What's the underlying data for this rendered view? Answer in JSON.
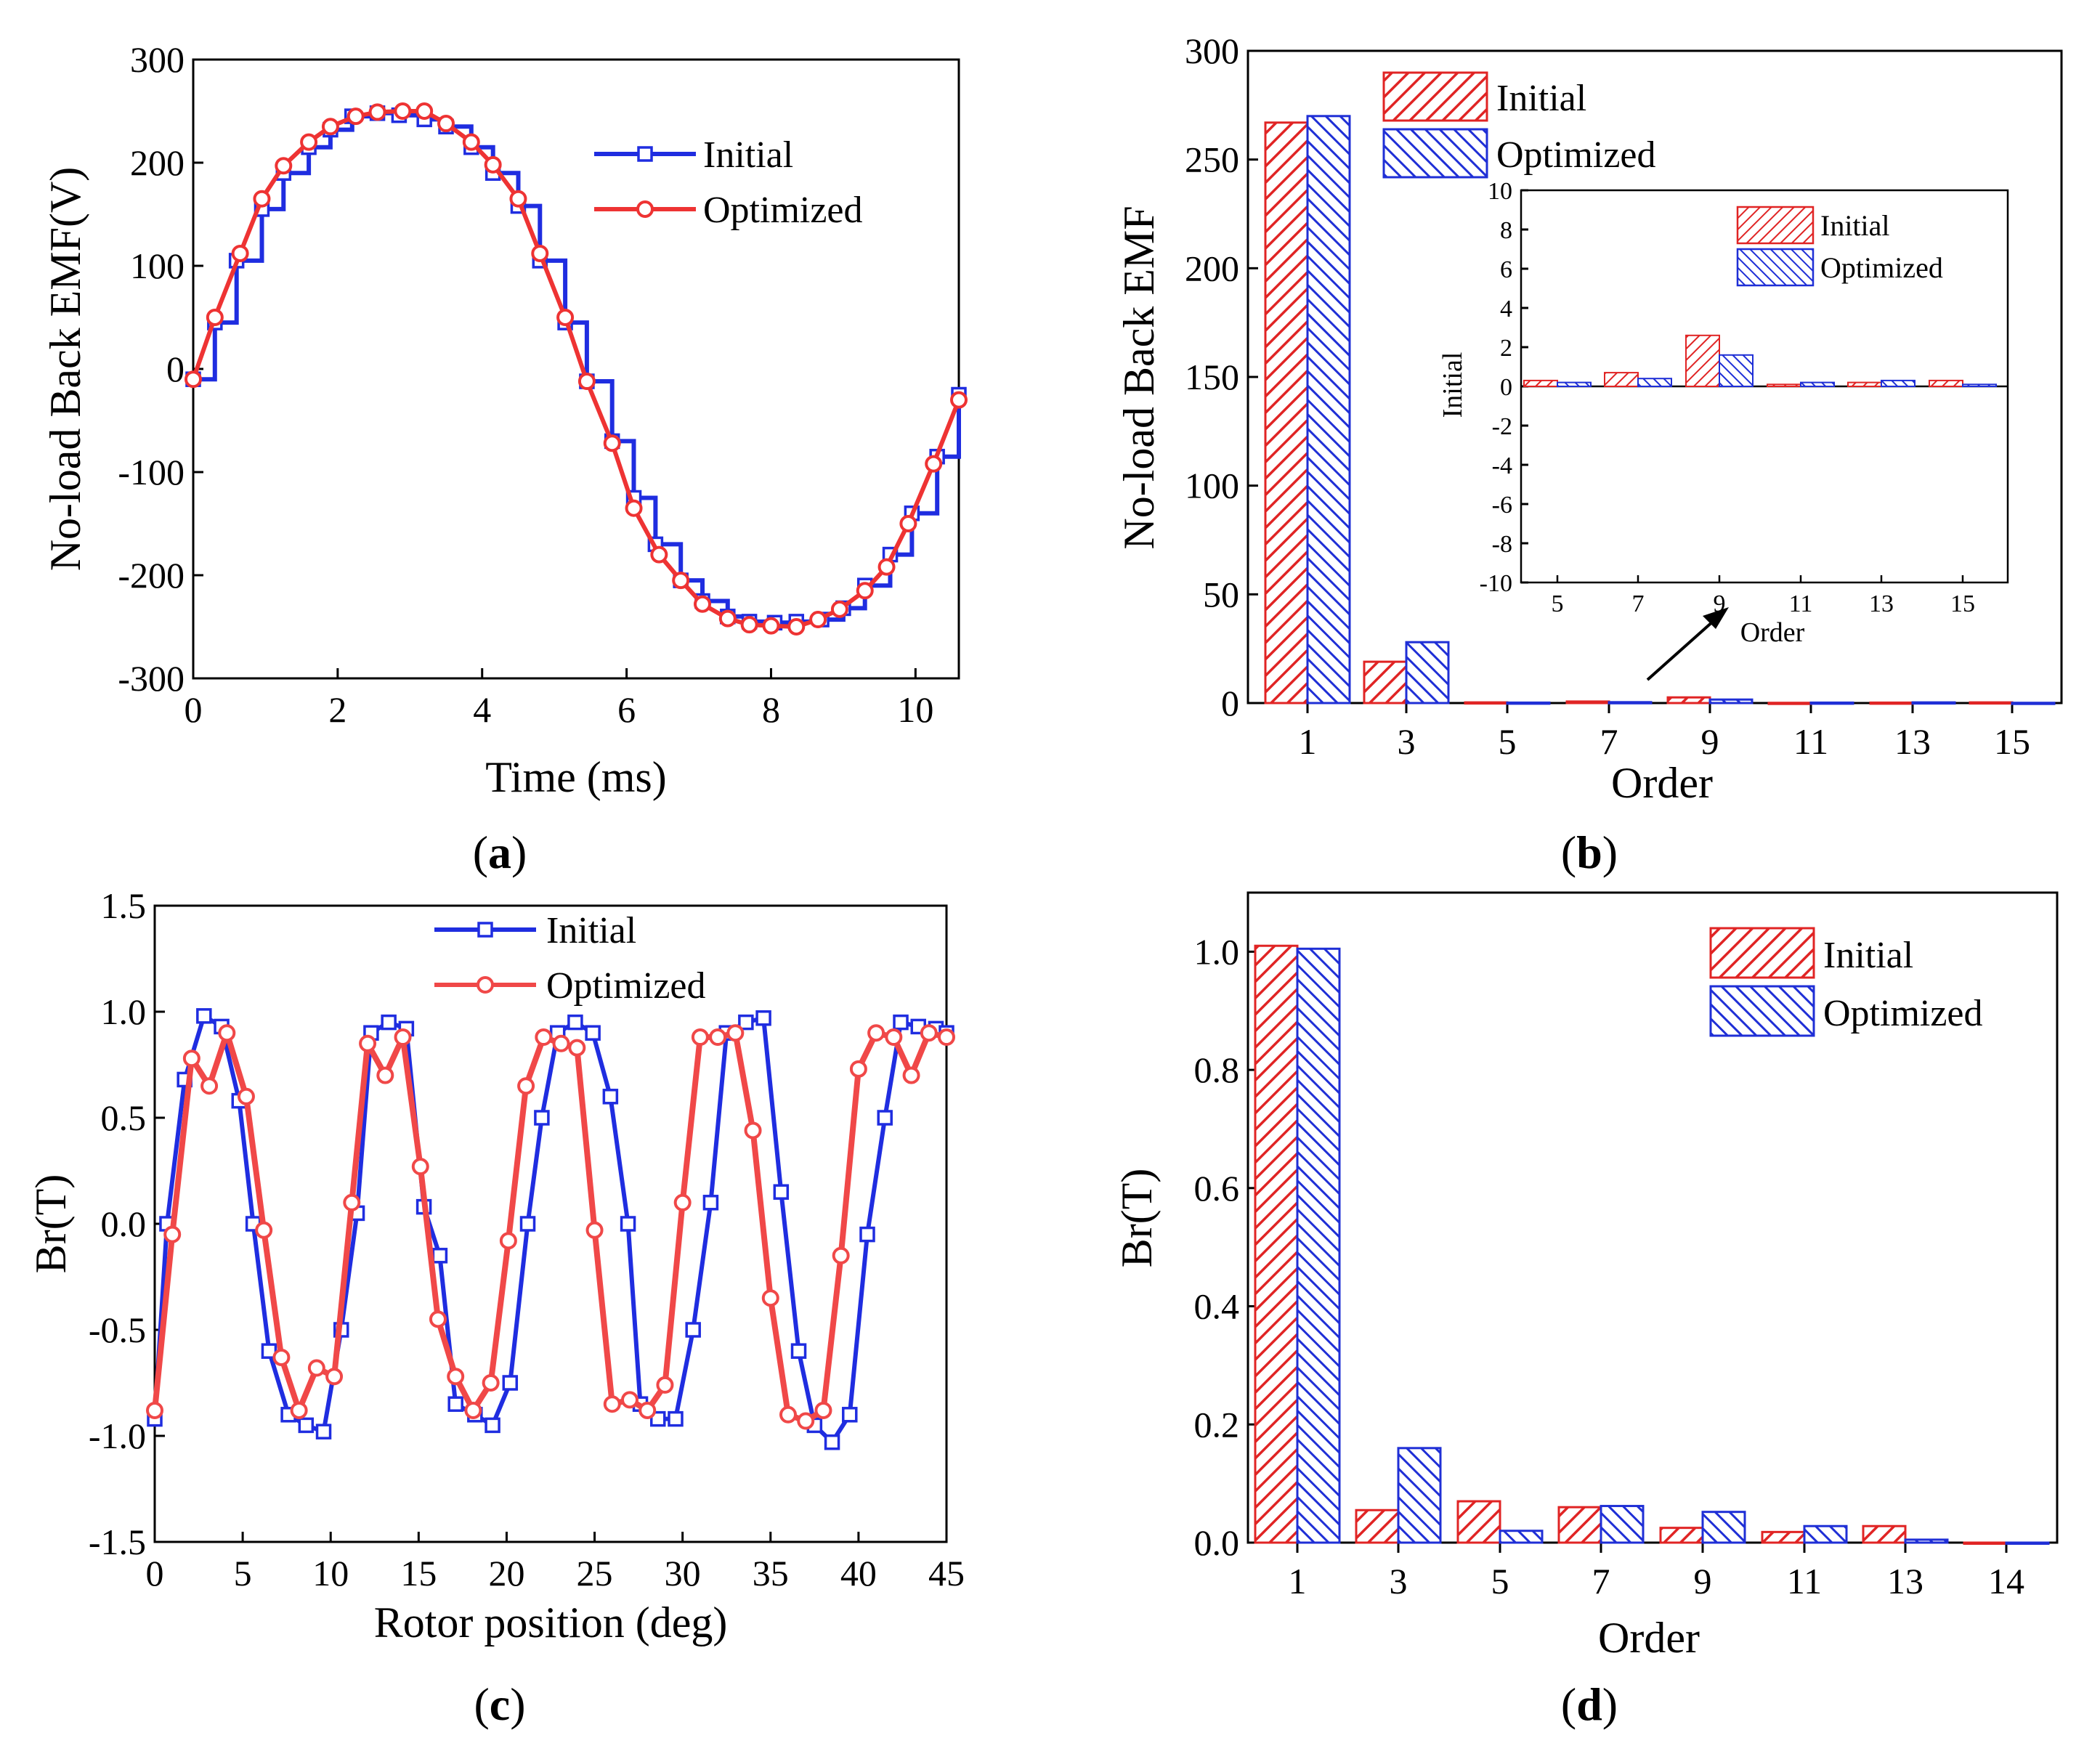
{
  "figure": {
    "colors": {
      "initial": "#1f2de0",
      "optimized": "#ee3333",
      "bar_initial": "#e02424",
      "bar_optimized": "#1f2fd6"
    },
    "panels": {
      "a": {
        "caption_label": "a"
      },
      "b": {
        "caption_label": "b"
      },
      "c": {
        "caption_label": "c"
      },
      "d": {
        "caption_label": "d"
      }
    }
  },
  "chart_data": [
    {
      "id": "a",
      "type": "line",
      "xlabel": "Time (ms)",
      "ylabel": "No-load Back EMF(V)",
      "xlim": [
        0,
        10.6
      ],
      "ylim": [
        -300,
        300
      ],
      "xticks": [
        0,
        2,
        4,
        6,
        8,
        10
      ],
      "yticks": [
        -300,
        -200,
        -100,
        0,
        100,
        200,
        300
      ],
      "legend": "top-right",
      "series": [
        {
          "name": "Initial",
          "marker": "square",
          "x": [
            0,
            0.3,
            0.6,
            0.95,
            1.25,
            1.6,
            1.9,
            2.2,
            2.55,
            2.85,
            3.2,
            3.5,
            3.85,
            4.15,
            4.5,
            4.8,
            5.15,
            5.45,
            5.8,
            6.1,
            6.4,
            6.75,
            7.05,
            7.4,
            7.7,
            8.05,
            8.35,
            8.7,
            9.0,
            9.3,
            9.65,
            9.95,
            10.3,
            10.6
          ],
          "y": [
            -10,
            45,
            105,
            155,
            190,
            215,
            232,
            245,
            248,
            246,
            242,
            235,
            215,
            190,
            158,
            105,
            45,
            -12,
            -70,
            -125,
            -170,
            -205,
            -225,
            -240,
            -245,
            -246,
            -245,
            -243,
            -232,
            -210,
            -180,
            -140,
            -85,
            -25
          ]
        },
        {
          "name": "Optimized",
          "marker": "circle",
          "x": [
            0,
            0.3,
            0.65,
            0.95,
            1.25,
            1.6,
            1.9,
            2.25,
            2.55,
            2.9,
            3.2,
            3.5,
            3.85,
            4.15,
            4.5,
            4.8,
            5.15,
            5.45,
            5.8,
            6.1,
            6.45,
            6.75,
            7.05,
            7.4,
            7.7,
            8.0,
            8.35,
            8.65,
            8.95,
            9.3,
            9.6,
            9.9,
            10.25,
            10.6
          ],
          "y": [
            -10,
            50,
            112,
            165,
            197,
            220,
            235,
            245,
            249,
            250,
            250,
            238,
            220,
            198,
            165,
            112,
            50,
            -12,
            -72,
            -135,
            -180,
            -205,
            -228,
            -242,
            -248,
            -249,
            -250,
            -243,
            -233,
            -215,
            -192,
            -150,
            -92,
            -30
          ]
        }
      ]
    },
    {
      "id": "b",
      "type": "bar",
      "xlabel": "Order",
      "ylabel": "No-load Back EMF",
      "categories": [
        "1",
        "3",
        "5",
        "7",
        "9",
        "11",
        "13",
        "15"
      ],
      "ylim": [
        0,
        300
      ],
      "yticks": [
        0,
        50,
        100,
        150,
        200,
        250,
        300
      ],
      "legend": "top",
      "series": [
        {
          "name": "Initial",
          "values": [
            267,
            19,
            0.3,
            0.7,
            2.6,
            0.1,
            0.2,
            0.3
          ]
        },
        {
          "name": "Optimized",
          "values": [
            270,
            28,
            0.2,
            0.4,
            1.6,
            0.2,
            0.3,
            0.1
          ]
        }
      ],
      "inset": {
        "type": "bar",
        "xlabel": "Order",
        "ylabel": "Initial",
        "categories": [
          "5",
          "7",
          "9",
          "11",
          "13",
          "15"
        ],
        "ylim": [
          -10,
          10
        ],
        "yticks": [
          -10,
          -8,
          -6,
          -4,
          -2,
          0,
          2,
          4,
          6,
          8,
          10
        ],
        "series": [
          {
            "name": "Initial",
            "values": [
              0.3,
              0.7,
              2.6,
              0.1,
              0.2,
              0.3
            ]
          },
          {
            "name": "Optimized",
            "values": [
              0.2,
              0.4,
              1.6,
              0.2,
              0.3,
              0.1
            ]
          }
        ]
      }
    },
    {
      "id": "c",
      "type": "line",
      "xlabel": "Rotor position (deg)",
      "ylabel": "Br(T)",
      "xlim": [
        0,
        45
      ],
      "ylim": [
        -1.5,
        1.5
      ],
      "xticks": [
        0,
        5,
        10,
        15,
        20,
        25,
        30,
        35,
        40,
        45
      ],
      "yticks": [
        -1.5,
        -1.0,
        -0.5,
        0.0,
        0.5,
        1.0,
        1.5
      ],
      "legend": "top-center",
      "series": [
        {
          "name": "Initial",
          "marker": "square",
          "x": [
            0,
            0.7,
            1.7,
            2.8,
            3.8,
            4.8,
            5.6,
            6.5,
            7.6,
            8.6,
            9.6,
            10.6,
            11.5,
            12.3,
            13.3,
            14.3,
            15.3,
            16.2,
            17.1,
            18.2,
            19.2,
            20.2,
            21.2,
            22.0,
            22.9,
            23.9,
            24.9,
            25.9,
            26.9,
            27.6,
            28.6,
            29.6,
            30.6,
            31.6,
            32.5,
            33.6,
            34.6,
            35.6,
            36.6,
            37.5,
            38.5,
            39.5,
            40.5,
            41.5,
            42.4,
            43.4,
            44.4,
            45
          ],
          "y": [
            -0.92,
            0.0,
            0.68,
            0.98,
            0.93,
            0.58,
            0.0,
            -0.6,
            -0.9,
            -0.95,
            -0.98,
            -0.5,
            0.05,
            0.9,
            0.95,
            0.92,
            0.08,
            -0.15,
            -0.85,
            -0.9,
            -0.95,
            -0.75,
            0.0,
            0.5,
            0.9,
            0.95,
            0.9,
            0.6,
            0.0,
            -0.85,
            -0.92,
            -0.92,
            -0.5,
            0.1,
            0.9,
            0.95,
            0.97,
            0.15,
            -0.6,
            -0.95,
            -1.03,
            -0.9,
            -0.05,
            0.5,
            0.95,
            0.93,
            0.92,
            0.9
          ]
        },
        {
          "name": "Optimized",
          "marker": "circle",
          "x": [
            0,
            1.0,
            2.1,
            3.1,
            4.1,
            5.2,
            6.2,
            7.2,
            8.2,
            9.2,
            10.2,
            11.2,
            12.1,
            13.1,
            14.1,
            15.1,
            16.1,
            17.1,
            18.1,
            19.1,
            20.1,
            21.1,
            22.1,
            23.1,
            24.0,
            25.0,
            26.0,
            27.0,
            28.0,
            29.0,
            30.0,
            31.0,
            32.0,
            33.0,
            34.0,
            35.0,
            36.0,
            37.0,
            38.0,
            39.0,
            40.0,
            41.0,
            42.0,
            43.0,
            44.0,
            45
          ],
          "y": [
            -0.88,
            -0.05,
            0.78,
            0.65,
            0.9,
            0.6,
            -0.03,
            -0.63,
            -0.88,
            -0.68,
            -0.72,
            0.1,
            0.85,
            0.7,
            0.88,
            0.27,
            -0.45,
            -0.72,
            -0.88,
            -0.75,
            -0.08,
            0.65,
            0.88,
            0.85,
            0.83,
            -0.03,
            -0.85,
            -0.83,
            -0.88,
            -0.76,
            0.1,
            0.88,
            0.88,
            0.9,
            0.44,
            -0.35,
            -0.9,
            -0.93,
            -0.88,
            -0.15,
            0.73,
            0.9,
            0.88,
            0.7,
            0.9,
            0.88
          ]
        }
      ]
    },
    {
      "id": "d",
      "type": "bar",
      "xlabel": "Order",
      "ylabel": "Br(T)",
      "categories": [
        "1",
        "3",
        "5",
        "7",
        "9",
        "11",
        "13",
        "14"
      ],
      "ylim": [
        0,
        1.1
      ],
      "yticks": [
        0.0,
        0.2,
        0.4,
        0.6,
        0.8,
        1.0
      ],
      "legend": "top-right",
      "series": [
        {
          "name": "Initial",
          "values": [
            1.01,
            0.055,
            0.07,
            0.06,
            0.025,
            0.018,
            0.028,
            0.0
          ]
        },
        {
          "name": "Optimized",
          "values": [
            1.005,
            0.16,
            0.02,
            0.062,
            0.052,
            0.028,
            0.005,
            0.0
          ]
        }
      ]
    }
  ]
}
